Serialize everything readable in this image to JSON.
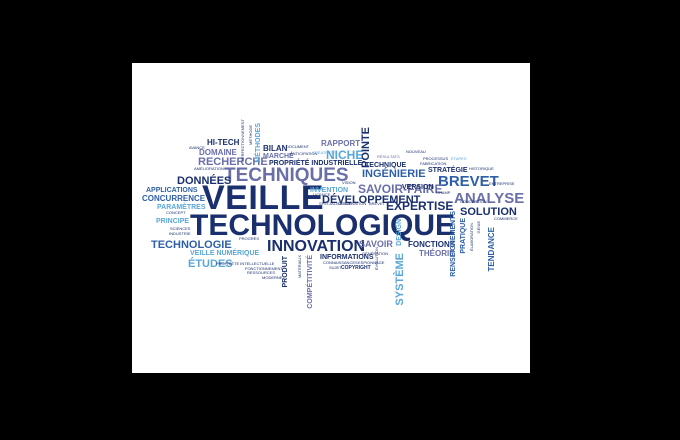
{
  "image": {
    "description_free": true,
    "background": "#000000",
    "panel": "#ffffff",
    "palette": [
      "#1a2f6e",
      "#2e5fa8",
      "#5aa7d8",
      "#6a6fa8",
      "#2c7ab8"
    ]
  },
  "words": {
    "veille": "VEILLE",
    "technologique": "TECHNOLOGIQUE",
    "techniques": "TECHNIQUES",
    "innovation": "INNOVATION",
    "technologie": "TECHNOLOGIE",
    "donnees": "DONNÉES",
    "developpement": "DÉVELOPPEMENT",
    "brevet": "BREVET",
    "analyse": "ANALYSE",
    "solution": "SOLUTION",
    "expertise": "EXPERTISE",
    "savoir_faire": "SAVOIR-FAIRE",
    "ingenierie": "INGÉNIERIE",
    "niche": "NICHE",
    "recherche": "RECHERCHE",
    "rapport": "RAPPORT",
    "pointe": "POINTE",
    "etudes": "ÉTUDES",
    "systeme": "SYSTÈME",
    "fonctions": "FONCTIONS",
    "theorie": "THÉORIE",
    "savoir": "SAVOIR",
    "informations": "INFORMATIONS",
    "hi_tech": "HI-TECH",
    "domaine": "DOMAINE",
    "bilan": "BILAN",
    "marche": "MARCHÉ",
    "methodes": "MÉTHODES",
    "propriete_industrielle": "PROPRIÉTÉ INDUSTRIELLE",
    "technique": "TECHNIQUE",
    "version": "VERSION",
    "strategie": "STRATÉGIE",
    "applications": "APPLICATIONS",
    "concurrence": "CONCURRENCE",
    "parametres": "PARAMÈTRES",
    "principe": "PRINCIPE",
    "veille_numerique": "VEILLE NUMÉRIQUE",
    "competitivite": "COMPÉTITIVITÉ",
    "produit": "PRODUIT",
    "pratique": "PRATIQUE",
    "renseignements": "RENSEIGNEMENTS",
    "tendance": "TENDANCE",
    "invention": "INVENTION",
    "design": "DESIGN",
    "copyright": "COPYRIGHT",
    "avance": "AVANCE",
    "amelioration": "AMÉLIORATION",
    "anticipation": "ANTICIPATION",
    "document": "DOCUMENT",
    "processus": "PROCESSUS",
    "resultats": "RÉSULTATS",
    "nouveau": "NOUVEAU",
    "fabrication": "FABRICATION",
    "historique": "HISTORIQUE",
    "entreprise": "ENTREPRISE",
    "commerce": "COMMERCE",
    "concept": "CONCEPT",
    "progres": "PROGRÈS",
    "sciences": "SCIENCES",
    "industrie": "INDUSTRIE",
    "propriete_intellectuelle": "PROPRIÉTÉ INTELLECTUELLE",
    "fonctionnement": "FONCTIONNEMENT",
    "ressources": "RESSOURCES",
    "moderne": "MODERNE",
    "sujet": "SUJET",
    "espionnage": "ESPIONNAGE",
    "generation": "GÉNÉRATION",
    "licence": "LICENCE",
    "perfectionnement": "PERFECTIONNEMENT",
    "champ": "CHAMP",
    "etapes": "ÉTAPES",
    "vision": "VISION",
    "genie": "GÉNIE",
    "creativite": "CRÉATIVITÉ",
    "materiaux": "MATÉRIAUX",
    "specialisation": "SPÉCIALISATION",
    "observation": "OBSERVATION",
    "connaissances": "CONNAISSANCES",
    "elaboration": "ÉLABORATION",
    "evolution": "ÉVOLUTION",
    "conception": "CONCEPTION",
    "brevet_small": "BREVET",
    "methode": "MÉTHODE"
  }
}
